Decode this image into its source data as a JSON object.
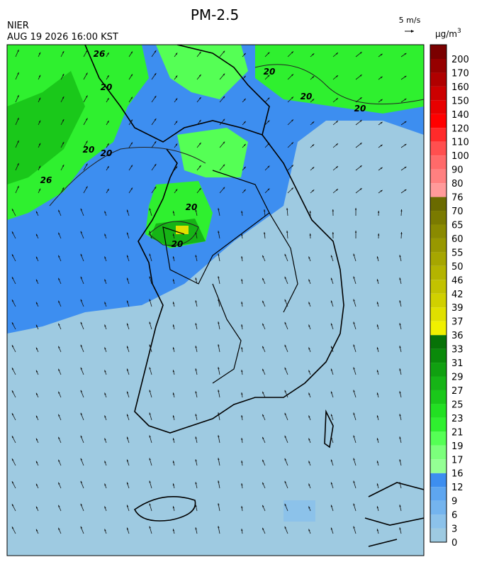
{
  "header": {
    "title": "PM-2.5",
    "agency": "NIER",
    "timestamp": "AUG 19 2026 16:00 KST",
    "wind_scale": "5 m/s"
  },
  "colorbar": {
    "unit": "µg/m",
    "unit_sup": "3",
    "levels": [
      0,
      3,
      6,
      9,
      12,
      16,
      17,
      19,
      21,
      23,
      25,
      27,
      29,
      31,
      33,
      36,
      37,
      39,
      42,
      46,
      50,
      55,
      60,
      65,
      70,
      76,
      80,
      90,
      100,
      110,
      120,
      140,
      150,
      160,
      170,
      200
    ],
    "colors": [
      "#9ecae1",
      "#8cc2ea",
      "#74b4ee",
      "#5ea6f0",
      "#3d8ef0",
      "#94ff94",
      "#7cff7c",
      "#55ff55",
      "#2ff02f",
      "#22e022",
      "#1ac81a",
      "#16b416",
      "#10a010",
      "#0a8a0a",
      "#077207",
      "#f0f000",
      "#e0e000",
      "#d0d000",
      "#c2c200",
      "#b4b400",
      "#a6a600",
      "#989800",
      "#8a8a00",
      "#7a7a00",
      "#6a6a00",
      "#ff9a9a",
      "#ff8080",
      "#ff6a6a",
      "#ff4f4f",
      "#ff2a2a",
      "#ff0000",
      "#e80000",
      "#cc0000",
      "#b00000",
      "#960000",
      "#7a0000"
    ]
  },
  "contour_labels": [
    "20",
    "20",
    "20",
    "20",
    "26",
    "20",
    "20",
    "26",
    "20",
    "20"
  ]
}
